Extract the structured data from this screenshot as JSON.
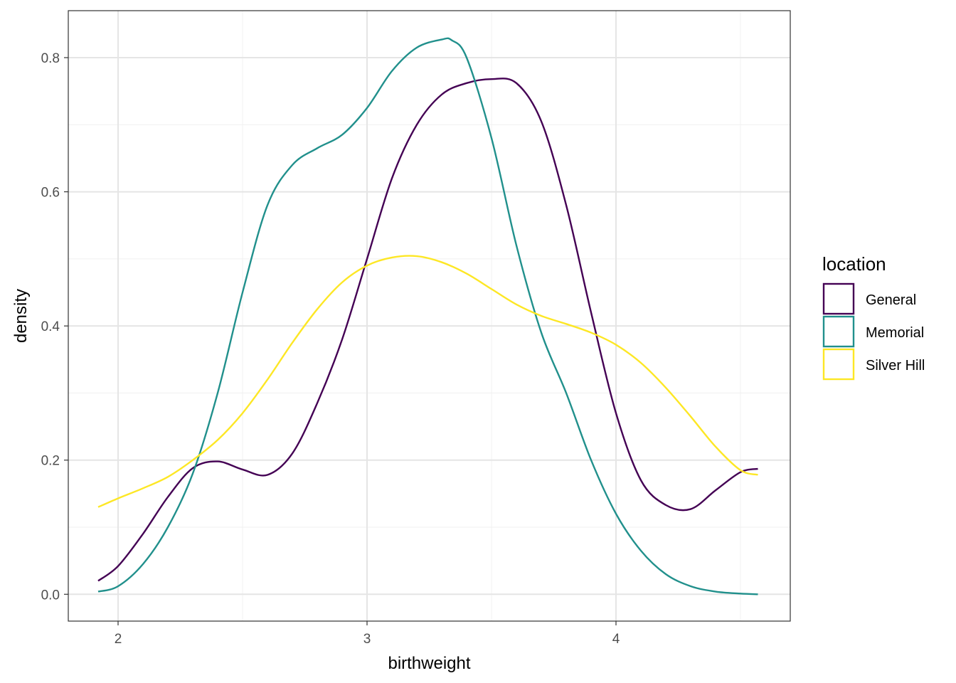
{
  "chart_data": {
    "type": "line",
    "xlabel": "birthweight",
    "ylabel": "density",
    "xlim": [
      1.8,
      4.7
    ],
    "ylim": [
      -0.04,
      0.87
    ],
    "x_ticks": [
      2,
      3,
      4
    ],
    "x_tick_labels": [
      "2",
      "3",
      "4"
    ],
    "y_ticks": [
      0.0,
      0.2,
      0.4,
      0.6,
      0.8
    ],
    "y_tick_labels": [
      "0.0",
      "0.2",
      "0.4",
      "0.6",
      "0.8"
    ],
    "x_minor_ticks": [
      2.5,
      3.5,
      4.5
    ],
    "y_minor_ticks": [
      0.1,
      0.3,
      0.5,
      0.7
    ],
    "grid": true,
    "legend": {
      "title": "location",
      "position": "right",
      "entries": [
        "General",
        "Memorial",
        "Silver Hill"
      ]
    },
    "series": [
      {
        "name": "General",
        "color": "#440154",
        "x": [
          1.92,
          2.0,
          2.1,
          2.2,
          2.3,
          2.4,
          2.5,
          2.6,
          2.7,
          2.8,
          2.9,
          3.0,
          3.1,
          3.2,
          3.3,
          3.4,
          3.5,
          3.6,
          3.7,
          3.8,
          3.9,
          4.0,
          4.1,
          4.2,
          4.3,
          4.4,
          4.5,
          4.57
        ],
        "y": [
          0.02,
          0.042,
          0.09,
          0.145,
          0.188,
          0.198,
          0.186,
          0.178,
          0.21,
          0.285,
          0.38,
          0.5,
          0.62,
          0.7,
          0.745,
          0.762,
          0.768,
          0.762,
          0.705,
          0.58,
          0.42,
          0.27,
          0.17,
          0.133,
          0.127,
          0.155,
          0.182,
          0.187
        ]
      },
      {
        "name": "Memorial",
        "color": "#21908C",
        "x": [
          1.92,
          2.0,
          2.1,
          2.2,
          2.3,
          2.4,
          2.5,
          2.6,
          2.7,
          2.8,
          2.9,
          3.0,
          3.1,
          3.2,
          3.3,
          3.34,
          3.4,
          3.5,
          3.6,
          3.7,
          3.8,
          3.9,
          4.0,
          4.1,
          4.2,
          4.3,
          4.4,
          4.5,
          4.57
        ],
        "y": [
          0.004,
          0.012,
          0.045,
          0.1,
          0.18,
          0.3,
          0.45,
          0.58,
          0.64,
          0.665,
          0.685,
          0.725,
          0.78,
          0.815,
          0.827,
          0.826,
          0.8,
          0.68,
          0.52,
          0.39,
          0.3,
          0.2,
          0.12,
          0.065,
          0.03,
          0.012,
          0.004,
          0.001,
          0.0
        ]
      },
      {
        "name": "Silver Hill",
        "color": "#FDE725",
        "x": [
          1.92,
          2.0,
          2.1,
          2.2,
          2.3,
          2.4,
          2.5,
          2.6,
          2.7,
          2.8,
          2.9,
          3.0,
          3.1,
          3.2,
          3.3,
          3.4,
          3.5,
          3.6,
          3.7,
          3.8,
          3.9,
          4.0,
          4.1,
          4.2,
          4.3,
          4.4,
          4.5,
          4.57
        ],
        "y": [
          0.13,
          0.143,
          0.158,
          0.175,
          0.2,
          0.23,
          0.27,
          0.32,
          0.375,
          0.425,
          0.465,
          0.49,
          0.502,
          0.504,
          0.495,
          0.478,
          0.455,
          0.432,
          0.415,
          0.403,
          0.39,
          0.372,
          0.345,
          0.308,
          0.265,
          0.22,
          0.185,
          0.178
        ]
      }
    ]
  },
  "colors": {
    "panel_border": "#333333",
    "grid_major": "#e5e5e5",
    "grid_minor": "#f0f0f0",
    "tick_text": "#4d4d4d"
  }
}
